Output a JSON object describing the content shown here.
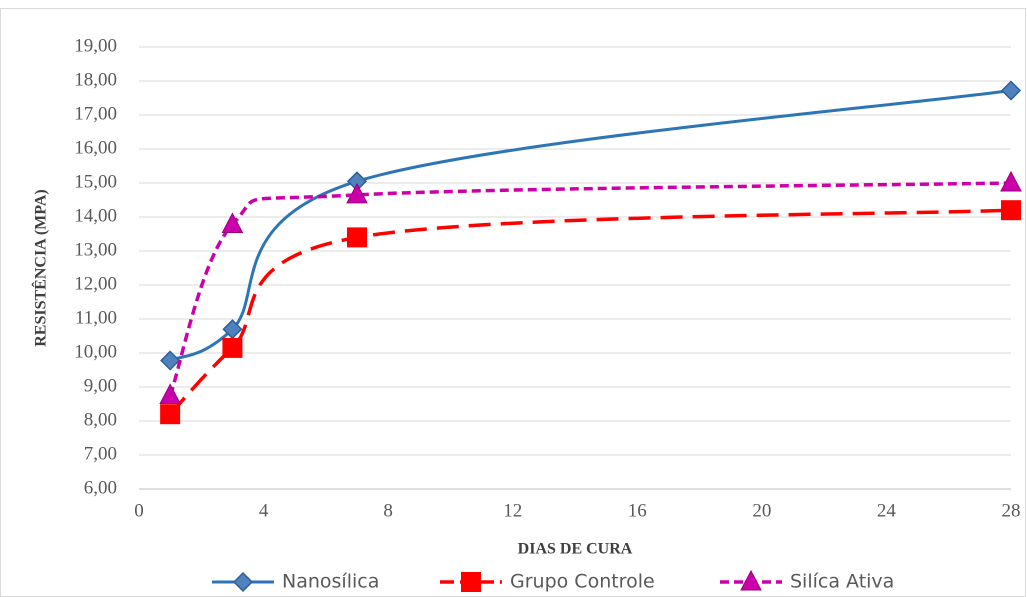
{
  "chart_data": {
    "type": "line",
    "x_label": "DIAS DE CURA",
    "y_label": "RESISTÊNCIA (MPA)",
    "x": [
      1,
      3,
      7,
      28
    ],
    "series": [
      {
        "name": "Nanosílica",
        "color": "#2e75b6",
        "values": [
          9.78,
          10.7,
          15.05,
          17.72
        ]
      },
      {
        "name": "Grupo Controle",
        "color": "#ff0000",
        "values": [
          8.2,
          10.15,
          13.4,
          14.2
        ]
      },
      {
        "name": "Silíca Ativa",
        "color": "#cc00aa",
        "values": [
          8.75,
          13.78,
          14.65,
          15.0
        ]
      }
    ],
    "xlim": [
      0,
      28
    ],
    "xticks": [
      0,
      4,
      8,
      12,
      16,
      20,
      24,
      28
    ],
    "ylim": [
      6,
      19
    ],
    "yticks": [
      {
        "value": 6,
        "label": "6,00"
      },
      {
        "value": 7,
        "label": "7,00"
      },
      {
        "value": 8,
        "label": "8,00"
      },
      {
        "value": 9,
        "label": "9,00"
      },
      {
        "value": 10,
        "label": "10,00"
      },
      {
        "value": 11,
        "label": "11,00"
      },
      {
        "value": 12,
        "label": "12,00"
      },
      {
        "value": 13,
        "label": "13,00"
      },
      {
        "value": 14,
        "label": "14,00"
      },
      {
        "value": 15,
        "label": "15,00"
      },
      {
        "value": 16,
        "label": "16,00"
      },
      {
        "value": 17,
        "label": "17,00"
      },
      {
        "value": 18,
        "label": "18,00"
      },
      {
        "value": 19,
        "label": "19,00"
      }
    ],
    "grid": true,
    "legend": "bottom"
  }
}
